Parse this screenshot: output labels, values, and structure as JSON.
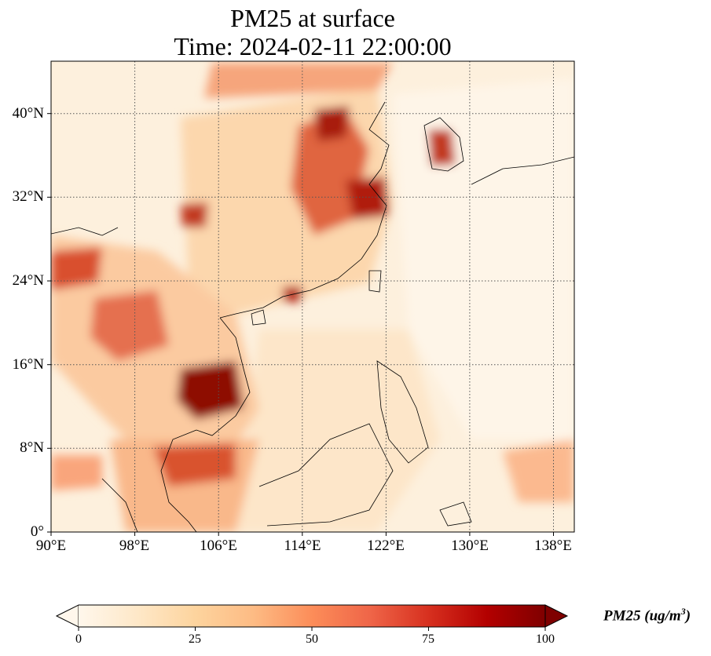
{
  "title": {
    "line1": "PM25 at surface",
    "line2": "Time: 2024-02-11 22:00:00"
  },
  "map": {
    "lon_range": [
      90,
      140
    ],
    "lat_range": [
      0,
      45
    ],
    "lon_ticks": [
      "90°E",
      "98°E",
      "106°E",
      "114°E",
      "122°E",
      "130°E",
      "138°E"
    ],
    "lat_ticks": [
      "0°",
      "8°N",
      "16°N",
      "24°N",
      "32°N",
      "40°N"
    ],
    "gridlines": "dotted"
  },
  "colorbar": {
    "ticks": [
      "0",
      "25",
      "50",
      "75",
      "100"
    ],
    "label": "PM25 (ug/m",
    "label_sup": "3",
    "label_end": ")",
    "colormap": [
      "#fff7ec",
      "#fee8c8",
      "#fdd49e",
      "#fdbb84",
      "#fc8d59",
      "#ef6548",
      "#d7301f",
      "#b30000",
      "#7f0000"
    ]
  }
}
